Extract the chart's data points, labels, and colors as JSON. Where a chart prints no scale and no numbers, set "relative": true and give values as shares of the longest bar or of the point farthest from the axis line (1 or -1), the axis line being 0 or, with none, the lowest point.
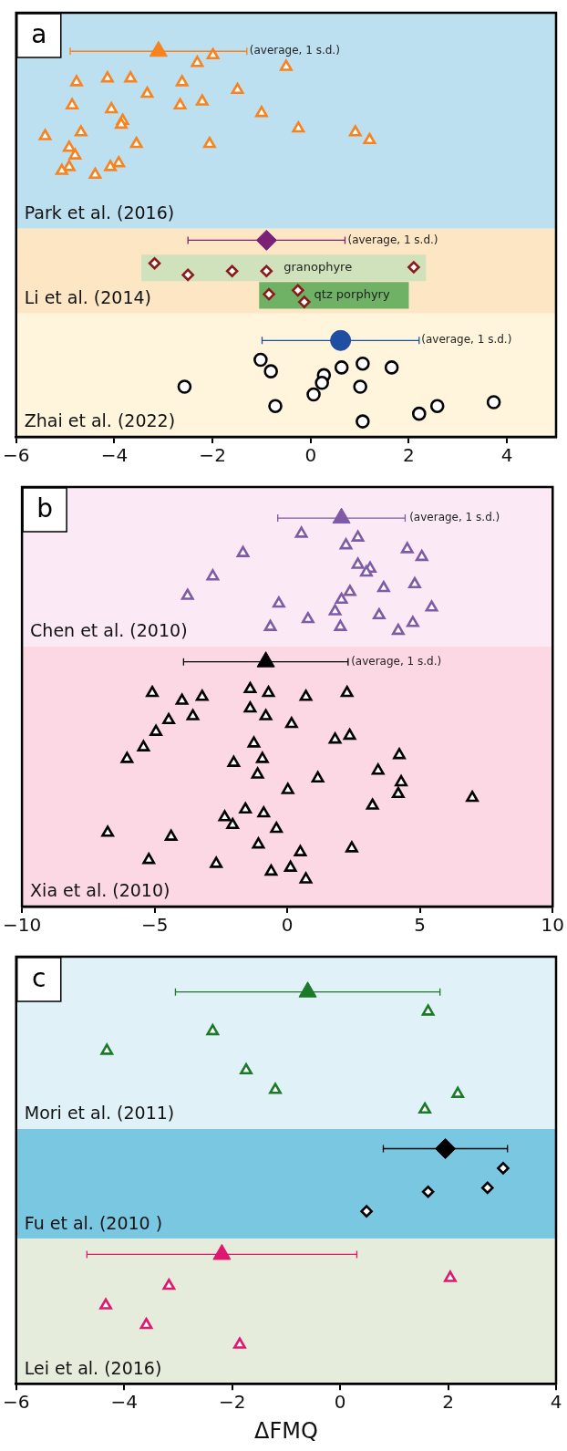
{
  "chart_data": [
    {
      "type": "scatter",
      "title": "a",
      "xlim": [
        -6,
        5
      ],
      "xticks": [
        -6,
        -4,
        -2,
        0,
        2,
        4
      ],
      "relative": true,
      "tick_labels": "x",
      "grid": false,
      "bands": [
        {
          "axis": "y",
          "from": 0.54,
          "to": 1.1,
          "label": "Park et al. (2016)",
          "color": "#bde0f0"
        },
        {
          "axis": "y",
          "from": 0.32,
          "to": 0.54,
          "label": "Li et al. (2014)",
          "color": "#fde6c4"
        },
        {
          "axis": "x",
          "from": -3.45,
          "to": 2.35,
          "label": "granophyre",
          "color": "#cfe2bb"
        },
        {
          "axis": "x",
          "from": -1.05,
          "to": 2.0,
          "label": "qtz porphyry",
          "color": "#6fb265"
        },
        {
          "axis": "y",
          "from": 0,
          "to": 0.32,
          "label": "Zhai et al. (2022)",
          "color": "#fff5dc"
        }
      ],
      "annotations": [
        {
          "text": "(average, 1 s.d.)",
          "x": -1.3,
          "y": 1
        },
        {
          "text": "(average, 1 s.d.)",
          "x": 0.7,
          "y": 0.51
        },
        {
          "text": "(average, 1 s.d.)",
          "x": 2.2,
          "y": 0.25
        }
      ],
      "series": [
        {
          "color": "#f7821e",
          "marker": "triangle",
          "x": [
            -3.1
          ],
          "values": [
            1
          ],
          "xerrors": [
            1.8
          ]
        },
        {
          "color": "#f7821e",
          "marker": "triangle",
          "x": [
            -1.99,
            -2.31,
            -0.5,
            -4.77,
            -4.14,
            -3.67,
            -2.62,
            -1.49,
            -3.33,
            -2.21,
            -4.86,
            -2.66,
            -4.06,
            -3.83,
            -1.0,
            -3.86,
            -4.68,
            -5.41,
            -0.25,
            0.91,
            1.2,
            -3.55,
            -2.06,
            -4.92,
            -4.8,
            -4.92,
            -5.07,
            -4.39,
            -4.08,
            -3.91
          ],
          "values": [
            0.99,
            0.97,
            0.96,
            0.92,
            0.93,
            0.93,
            0.92,
            0.9,
            0.89,
            0.87,
            0.86,
            0.86,
            0.85,
            0.82,
            0.84,
            0.81,
            0.79,
            0.78,
            0.8,
            0.79,
            0.77,
            0.76,
            0.76,
            0.75,
            0.73,
            0.7,
            0.69,
            0.68,
            0.7,
            0.71
          ]
        },
        {
          "color": "#7b2278",
          "marker": "diamond",
          "x": [
            -0.9
          ],
          "values": [
            0.51
          ],
          "xerrors": [
            1.6
          ]
        },
        {
          "color": "#8b1a1a",
          "marker": "diamond",
          "x": [
            -3.18,
            -2.5,
            -1.6,
            -0.9,
            2.1,
            -0.85,
            -0.26,
            -0.13
          ],
          "values": [
            0.45,
            0.42,
            0.43,
            0.43,
            0.44,
            0.37,
            0.38,
            0.35
          ]
        },
        {
          "color": "#1f4fa0",
          "marker": "circle",
          "x": [
            0.61
          ],
          "values": [
            0.25
          ],
          "xerrors": [
            1.6
          ]
        },
        {
          "color": "#000000",
          "marker": "circle",
          "x": [
            -1.02,
            -0.81,
            -2.57,
            0.27,
            0.23,
            0.63,
            1.06,
            1.65,
            1.01,
            0.06,
            -0.72,
            2.21,
            2.58,
            3.73,
            1.06
          ],
          "values": [
            0.2,
            0.17,
            0.13,
            0.16,
            0.14,
            0.18,
            0.19,
            0.18,
            0.13,
            0.11,
            0.08,
            0.06,
            0.08,
            0.09,
            0.04
          ]
        }
      ]
    },
    {
      "type": "scatter",
      "title": "b",
      "xlim": [
        -10,
        10
      ],
      "xticks": [
        -10,
        -5,
        0,
        5,
        10
      ],
      "relative": true,
      "tick_labels": "x",
      "grid": false,
      "bands": [
        {
          "axis": "y",
          "from": 0.67,
          "to": 1.08,
          "label": "Chen et al. (2010)",
          "color": "#fbeaf5"
        },
        {
          "axis": "y",
          "from": 0,
          "to": 0.67,
          "label": "Xia et al. (2010)",
          "color": "#fcd8e4"
        }
      ],
      "annotations": [
        {
          "text": "(average, 1 s.d.)",
          "x": 4.5,
          "y": 1
        },
        {
          "text": "(average, 1 s.d.)",
          "x": 2.3,
          "y": 0.63
        }
      ],
      "series": [
        {
          "color": "#7f5aa6",
          "marker": "triangle",
          "x": [
            2.04
          ],
          "values": [
            1
          ],
          "xerrors": [
            2.4
          ]
        },
        {
          "color": "#7f5aa6",
          "marker": "triangle",
          "x": [
            0.53,
            2.66,
            2.21,
            -1.67,
            4.52,
            5.07,
            2.66,
            3.12,
            2.98,
            -2.81,
            4.8,
            3.63,
            -3.76,
            2.36,
            2.04,
            -0.32,
            5.44,
            1.8,
            0.78,
            3.46,
            4.73,
            -0.64,
            2.0,
            4.18
          ],
          "values": [
            0.96,
            0.95,
            0.93,
            0.91,
            0.92,
            0.9,
            0.88,
            0.87,
            0.86,
            0.85,
            0.83,
            0.82,
            0.8,
            0.81,
            0.79,
            0.78,
            0.77,
            0.76,
            0.74,
            0.75,
            0.73,
            0.72,
            0.72,
            0.71
          ]
        },
        {
          "color": "#000000",
          "marker": "triangle",
          "x": [
            -0.81
          ],
          "values": [
            0.63
          ],
          "xerrors": [
            3.1
          ]
        },
        {
          "color": "#000000",
          "marker": "triangle",
          "x": [
            -5.09,
            -3.97,
            -3.21,
            -1.4,
            -0.71,
            0.7,
            2.25,
            -1.4,
            -0.81,
            -4.47,
            -3.56,
            -4.95,
            0.16,
            2.35,
            1.8,
            -5.42,
            -1.26,
            -6.04,
            4.22,
            -0.94,
            -2.02,
            3.42,
            -1.12,
            1.15,
            4.29,
            0.02,
            4.18,
            3.21,
            6.97,
            -1.58,
            -0.89,
            -2.36,
            -2.06,
            -0.41,
            -6.77,
            -4.38,
            -1.09,
            2.43,
            0.49,
            -5.22,
            -2.68,
            0.12,
            -0.61,
            0.7
          ],
          "values": [
            0.55,
            0.53,
            0.54,
            0.56,
            0.55,
            0.54,
            0.55,
            0.51,
            0.49,
            0.48,
            0.49,
            0.45,
            0.47,
            0.44,
            0.43,
            0.41,
            0.42,
            0.38,
            0.39,
            0.38,
            0.37,
            0.35,
            0.34,
            0.33,
            0.32,
            0.3,
            0.29,
            0.26,
            0.28,
            0.25,
            0.24,
            0.23,
            0.21,
            0.2,
            0.19,
            0.18,
            0.16,
            0.15,
            0.14,
            0.12,
            0.11,
            0.1,
            0.09,
            0.07
          ]
        }
      ]
    },
    {
      "type": "scatter",
      "title": "c",
      "xlabel": "ΔFMQ",
      "xlim": [
        -6,
        4
      ],
      "xticks": [
        -6,
        -4,
        -2,
        0,
        2,
        4
      ],
      "relative": true,
      "tick_labels": "x",
      "grid": false,
      "bands": [
        {
          "axis": "y",
          "from": 0.65,
          "to": 1.09,
          "label": "Mori et al. (2011)",
          "color": "#e0f2f8"
        },
        {
          "axis": "y",
          "from": 0.37,
          "to": 0.65,
          "label": "Fu et al. (2010 )",
          "color": "#7ac7e2"
        },
        {
          "axis": "y",
          "from": 0,
          "to": 0.37,
          "label": "Lei et al. (2016)",
          "color": "#e6ecdc"
        }
      ],
      "series": [
        {
          "color": "#1b7a28",
          "marker": "triangle",
          "x": [
            -0.6
          ],
          "values": [
            1
          ],
          "xerrors": [
            2.45
          ]
        },
        {
          "color": "#1b7a28",
          "marker": "triangle",
          "x": [
            1.63,
            -2.36,
            -4.32,
            -1.74,
            -1.2,
            2.18,
            1.57
          ],
          "values": [
            0.95,
            0.9,
            0.85,
            0.8,
            0.75,
            0.74,
            0.7
          ]
        },
        {
          "color": "#000000",
          "marker": "diamond",
          "x": [
            1.95
          ],
          "values": [
            0.6
          ],
          "xerrors": [
            1.15
          ]
        },
        {
          "color": "#000000",
          "marker": "diamond",
          "x": [
            3.02,
            1.63,
            2.73,
            0.49
          ],
          "values": [
            0.55,
            0.49,
            0.5,
            0.44
          ]
        },
        {
          "color": "#e0176e",
          "marker": "triangle",
          "x": [
            -2.19
          ],
          "values": [
            0.33
          ],
          "xerrors": [
            2.5
          ]
        },
        {
          "color": "#e0176e",
          "marker": "triangle",
          "x": [
            2.04,
            -3.17,
            -4.34,
            -3.59,
            -1.86
          ],
          "values": [
            0.27,
            0.25,
            0.2,
            0.15,
            0.1
          ]
        }
      ]
    }
  ]
}
